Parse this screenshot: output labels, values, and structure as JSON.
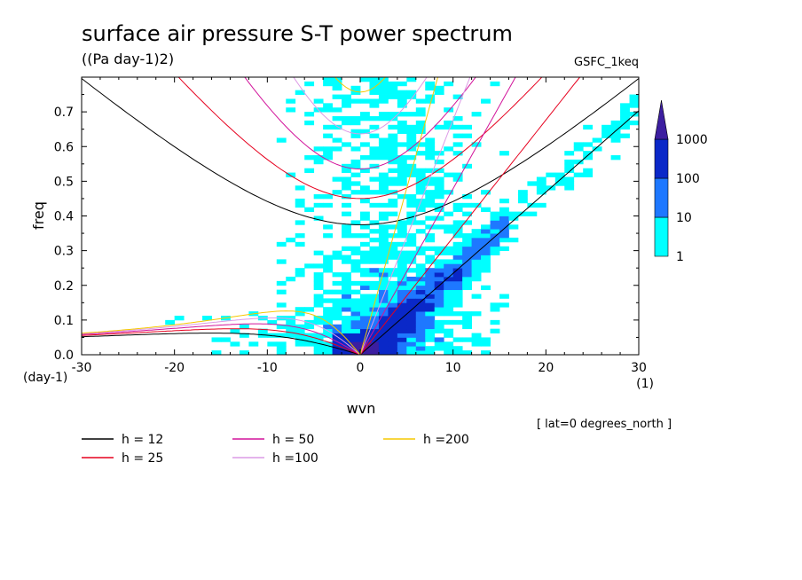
{
  "chart_data": {
    "type": "heatmap",
    "title": "surface air pressure S-T power spectrum",
    "units": "((Pa day-1)2)",
    "dataset": "GSFC_1keq",
    "xlabel": "wvn",
    "ylabel": "freq",
    "x_unit": "(1)",
    "y_unit": "(day-1)",
    "xlim": [
      -30,
      30
    ],
    "ylim": [
      0,
      0.8
    ],
    "xticks": [
      "-30",
      "-20",
      "-10",
      "0",
      "10",
      "20",
      "30"
    ],
    "yticks": [
      "0.0",
      "0.1",
      "0.2",
      "0.3",
      "0.4",
      "0.5",
      "0.6",
      "0.7"
    ],
    "colorbar": {
      "levels": [
        "1",
        "10",
        "100",
        "1000"
      ],
      "colors": [
        "#00ffff",
        "#1e78ff",
        "#0a28c8",
        "#3c1ea0"
      ]
    },
    "colors": {
      "h12": "#000000",
      "h25": "#e6001e",
      "h50": "#d2149b",
      "h100": "#dc9be6",
      "h200": "#f5c800"
    },
    "dispersion_curves": [
      {
        "name": "h = 12",
        "h": 12,
        "color_key": "h12"
      },
      {
        "name": "h = 25",
        "h": 25,
        "color_key": "h25"
      },
      {
        "name": "h = 50",
        "h": 50,
        "color_key": "h50"
      },
      {
        "name": "h =100",
        "h": 100,
        "color_key": "h100"
      },
      {
        "name": "h =200",
        "h": 200,
        "color_key": "h200"
      }
    ],
    "annotation": "[ lat=0 degrees_north ]"
  }
}
